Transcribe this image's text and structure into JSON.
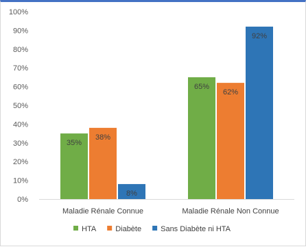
{
  "chart_data": {
    "type": "bar",
    "title": "",
    "xlabel": "",
    "ylabel": "",
    "categories": [
      "Maladie Rénale Connue",
      "Maladie Rénale Non Connue"
    ],
    "series": [
      {
        "name": "HTA",
        "values": [
          35,
          65
        ],
        "labels": [
          "35%",
          "65%"
        ],
        "color": "#70ad47"
      },
      {
        "name": "Diabète",
        "values": [
          38,
          62
        ],
        "labels": [
          "38%",
          "62%"
        ],
        "color": "#ed7d31"
      },
      {
        "name": "Sans Diabète ni HTA",
        "values": [
          8,
          92
        ],
        "labels": [
          "8%",
          "92%"
        ],
        "color": "#2e75b6"
      }
    ],
    "ylim": [
      0,
      100
    ],
    "yticks": [
      0,
      10,
      20,
      30,
      40,
      50,
      60,
      70,
      80,
      90,
      100
    ],
    "ytick_labels": [
      "0%",
      "10%",
      "20%",
      "30%",
      "40%",
      "50%",
      "60%",
      "70%",
      "80%",
      "90%",
      "100%"
    ],
    "grid": false,
    "legend_position": "bottom"
  }
}
